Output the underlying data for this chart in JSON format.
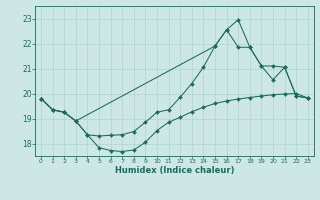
{
  "xlabel": "Humidex (Indice chaleur)",
  "bg_color": "#cde8e4",
  "grid_color": "#acd4ce",
  "line_color": "#1a6b60",
  "xlim": [
    -0.5,
    23.5
  ],
  "ylim": [
    17.5,
    23.5
  ],
  "yticks": [
    18,
    19,
    20,
    21,
    22,
    23
  ],
  "xticks": [
    0,
    1,
    2,
    3,
    4,
    5,
    6,
    7,
    8,
    9,
    10,
    11,
    12,
    13,
    14,
    15,
    16,
    17,
    18,
    19,
    20,
    21,
    22,
    23
  ],
  "curve1_x": [
    0,
    1,
    2,
    3,
    4,
    5,
    6,
    7,
    8,
    9,
    10,
    11,
    12,
    13,
    14,
    15,
    16,
    17,
    18,
    19,
    20,
    21,
    22,
    23
  ],
  "curve1_y": [
    19.8,
    19.35,
    19.25,
    18.9,
    18.35,
    17.83,
    17.72,
    17.68,
    17.74,
    18.05,
    18.52,
    18.85,
    19.05,
    19.27,
    19.45,
    19.6,
    19.7,
    19.78,
    19.84,
    19.9,
    19.95,
    19.98,
    20.0,
    19.82
  ],
  "curve2_x": [
    0,
    1,
    2,
    3,
    4,
    5,
    6,
    7,
    8,
    9,
    10,
    11,
    12,
    13,
    14,
    15,
    16,
    17,
    18,
    19,
    20,
    21,
    22,
    23
  ],
  "curve2_y": [
    19.8,
    19.35,
    19.25,
    18.9,
    18.35,
    18.3,
    18.33,
    18.35,
    18.48,
    18.85,
    19.25,
    19.35,
    19.85,
    20.4,
    21.05,
    21.9,
    22.55,
    22.95,
    21.85,
    21.1,
    20.55,
    21.05,
    19.9,
    19.82
  ],
  "curve3_x": [
    0,
    1,
    2,
    3,
    15,
    16,
    17,
    18,
    19,
    20,
    21,
    22,
    23
  ],
  "curve3_y": [
    19.8,
    19.35,
    19.25,
    18.9,
    21.9,
    22.55,
    21.85,
    21.85,
    21.1,
    21.1,
    21.05,
    19.9,
    19.82
  ]
}
